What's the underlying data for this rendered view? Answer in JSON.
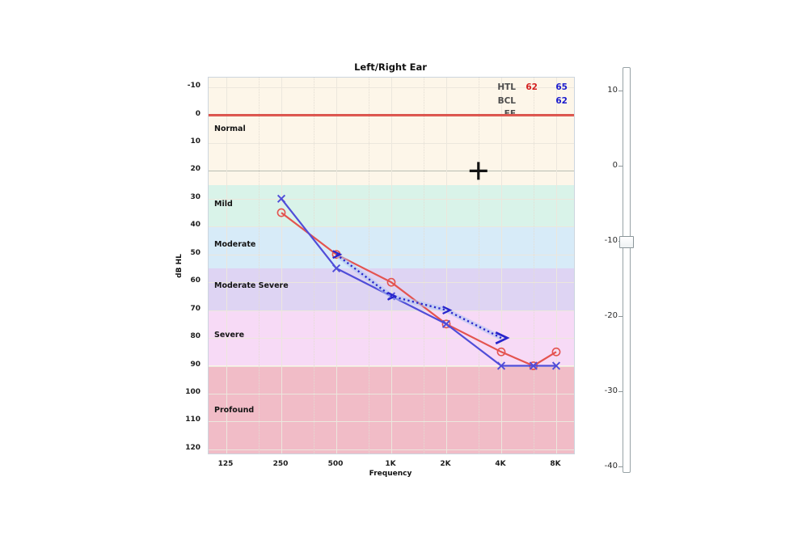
{
  "chart_data": {
    "type": "line",
    "title": "Left/Right Ear",
    "xlabel": "Frequency",
    "ylabel": "dB HL",
    "x_axis_scale": "log2",
    "y_axis_inverted": true,
    "ylim": [
      -13.5,
      121.5
    ],
    "x_ticks": [
      {
        "label": "125",
        "f": 125
      },
      {
        "label": "250",
        "f": 250
      },
      {
        "label": "500",
        "f": 500
      },
      {
        "label": "1K",
        "f": 1000
      },
      {
        "label": "2K",
        "f": 2000
      },
      {
        "label": "4K",
        "f": 4000
      },
      {
        "label": "8K",
        "f": 8000
      }
    ],
    "minor_x_gridlines_f": [
      187.5,
      375,
      750,
      1500,
      3000,
      6000
    ],
    "y_ticks": [
      -10,
      0,
      10,
      20,
      30,
      40,
      50,
      60,
      70,
      80,
      90,
      100,
      110,
      120
    ],
    "highlight_y_gridline": 20,
    "zero_line": {
      "db": 0,
      "color": "#d9453c"
    },
    "severity_bands": [
      {
        "label": "Normal",
        "from": -13.5,
        "to": 25,
        "label_db": 5,
        "color": "#fdf6e9"
      },
      {
        "label": "Mild",
        "from": 25,
        "to": 40,
        "label_db": 32,
        "color": "#d9f3e9"
      },
      {
        "label": "Moderate",
        "from": 40,
        "to": 55,
        "label_db": 46.5,
        "color": "#d7ebf8"
      },
      {
        "label": "Moderate Severe",
        "from": 55,
        "to": 70,
        "label_db": 61.5,
        "color": "#ded4f3"
      },
      {
        "label": "Severe",
        "from": 70,
        "to": 90,
        "label_db": 79,
        "color": "#f7daf6"
      },
      {
        "label": "Profound",
        "from": 90,
        "to": 121.5,
        "label_db": 106,
        "color": "#f1bcc7"
      }
    ],
    "series": [
      {
        "name": "HTL-right-air",
        "marker": "circle",
        "style": "solid",
        "color": "#e4534f",
        "points": [
          [
            250,
            35
          ],
          [
            500,
            50
          ],
          [
            1000,
            60
          ],
          [
            2000,
            75
          ],
          [
            4000,
            85
          ],
          [
            6000,
            90
          ],
          [
            8000,
            85
          ]
        ]
      },
      {
        "name": "HTL-left-air",
        "marker": "x",
        "style": "solid",
        "color": "#504dd8",
        "points": [
          [
            250,
            30
          ],
          [
            500,
            55
          ],
          [
            1000,
            65
          ],
          [
            2000,
            75
          ],
          [
            4000,
            90
          ],
          [
            6000,
            90
          ],
          [
            8000,
            90
          ]
        ]
      },
      {
        "name": "BCL-bone",
        "marker": "greater-than",
        "style": "dotted",
        "color": "#2824cc",
        "glow": "#aec4f0",
        "points": [
          [
            500,
            50
          ],
          [
            1000,
            65
          ],
          [
            2000,
            70
          ],
          [
            4000,
            80
          ]
        ]
      }
    ],
    "cursor": {
      "f": 3000,
      "db": 20
    }
  },
  "legend": {
    "rows": [
      {
        "label": "HTL",
        "red": "62",
        "blue": "65"
      },
      {
        "label": "BCL",
        "red": "",
        "blue": "62"
      },
      {
        "label": "FF",
        "red": "",
        "blue": ""
      }
    ],
    "red_color": "#d42020",
    "blue_color": "#1c1ccd"
  },
  "slider": {
    "tick_labels": [
      "10",
      "0",
      "-10",
      "-20",
      "-30",
      "-40"
    ],
    "value": -10
  }
}
